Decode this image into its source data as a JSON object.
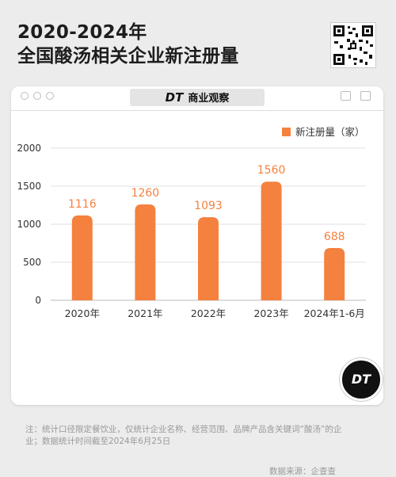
{
  "header": {
    "title_line1": "2020-2024年",
    "title_line2": "全国酸汤相关企业新注册量"
  },
  "window": {
    "brand_logo": "DT",
    "brand_name": "商业观察"
  },
  "colors": {
    "bar": "#F5813F",
    "label": "#F5813F",
    "axis_text": "#333333",
    "grid": "#E2E2E2"
  },
  "icons": [
    "qr-code-icon",
    "dt-logo-icon",
    "window-dot-icon",
    "image-icon",
    "page-icon"
  ],
  "chart_data": {
    "type": "bar",
    "categories": [
      "2020年",
      "2021年",
      "2022年",
      "2023年",
      "2024年1-6月"
    ],
    "series": [
      {
        "name": "新注册量（家）",
        "values": [
          1116,
          1260,
          1093,
          1560,
          688
        ]
      }
    ],
    "ylim": [
      0,
      2000
    ],
    "yticks": [
      0,
      500,
      1000,
      1500,
      2000
    ],
    "legend": "top-right",
    "grid": true
  },
  "note": "注：统计口径限定餐饮业，仅统计企业名称、经营范围、品牌产品含关键词“酸汤”的企业；数据统计时间截至2024年6月25日",
  "source": "数据来源：企查查",
  "badge": "DT"
}
